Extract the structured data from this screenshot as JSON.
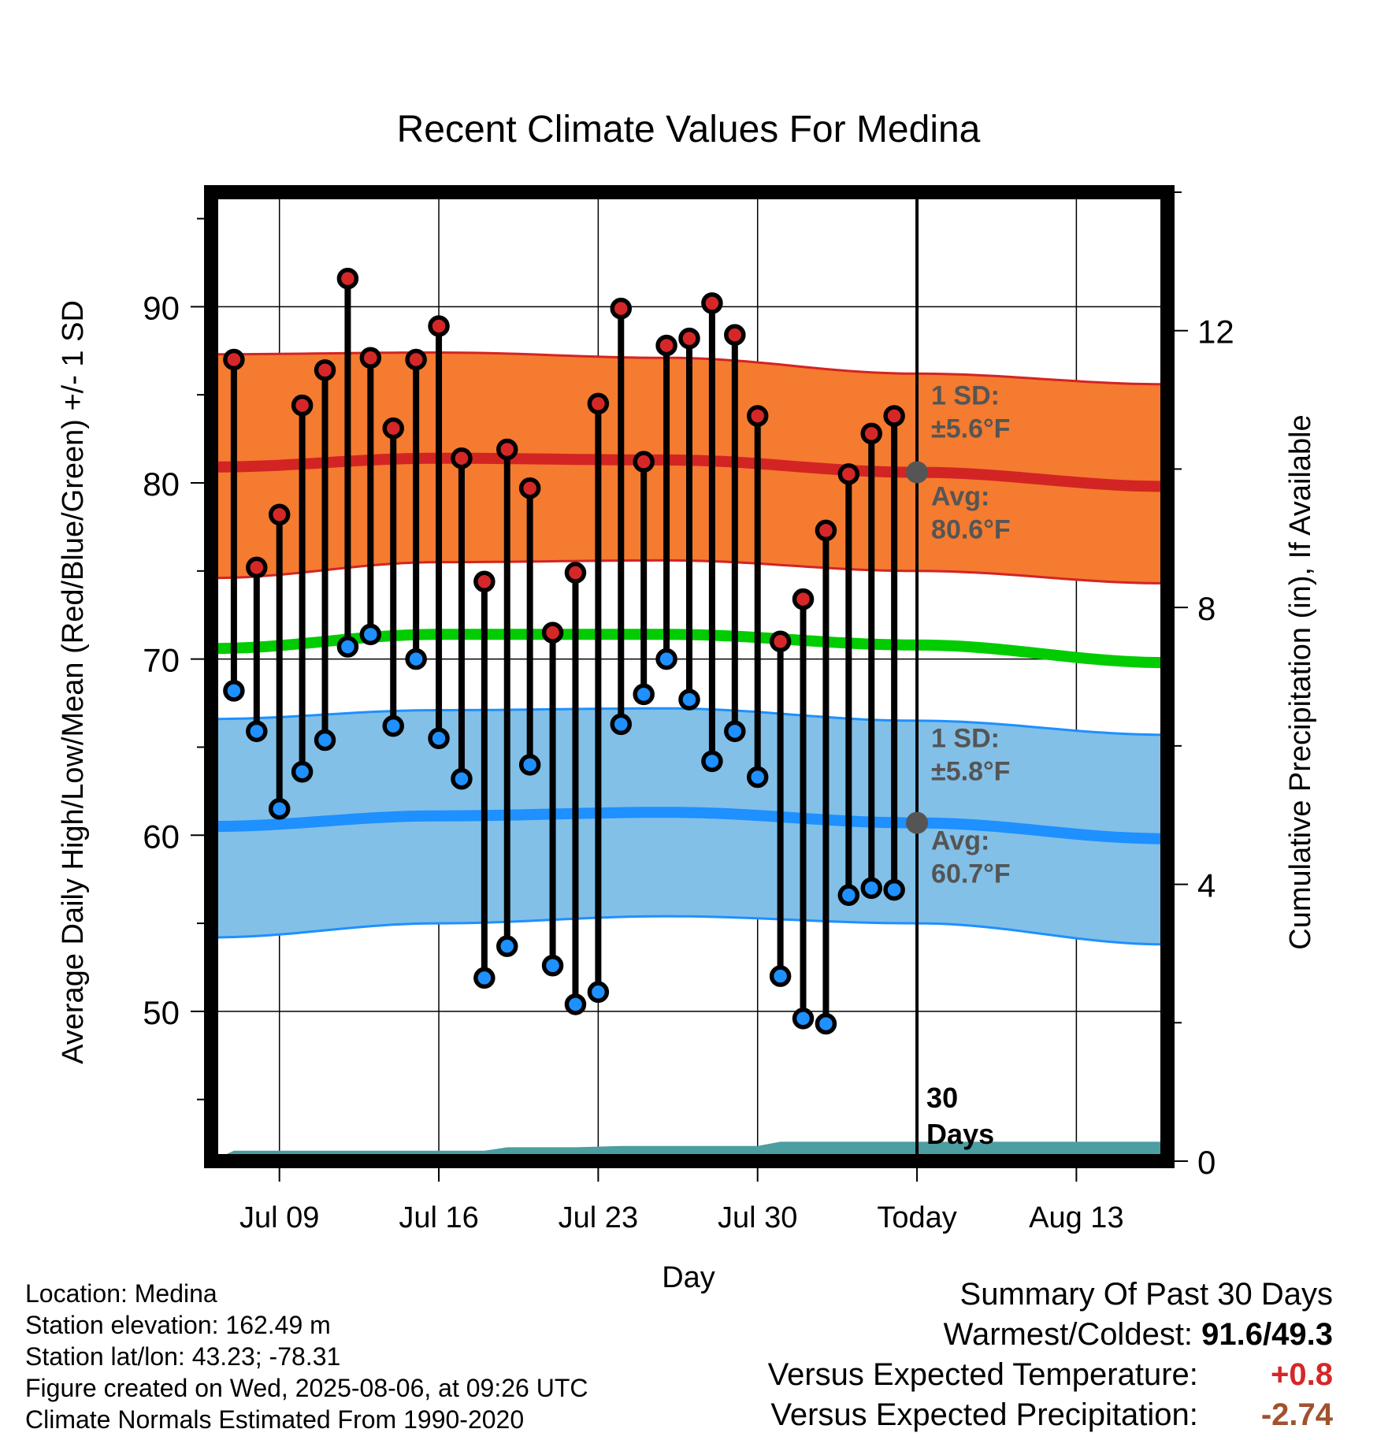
{
  "chart_data": {
    "type": "line",
    "title": "Recent Climate Values For Medina",
    "xlabel": "Day",
    "ylabel_left": "Average Daily High/Low/Mean (Red/Blue/Green) +/- 1 SD",
    "ylabel_right": "Cumulative Precipitation (in), If Available",
    "x_tick_labels": [
      "Jul 09",
      "Jul 16",
      "Jul 23",
      "Jul 30",
      "Today",
      "Aug 13"
    ],
    "y_left_ticks": [
      50,
      60,
      70,
      80,
      90
    ],
    "y_right_ticks": [
      0,
      4,
      8,
      12
    ],
    "ylim_left": [
      41.5,
      96.5
    ],
    "ylim_right": [
      0,
      14
    ],
    "x_day_range": [
      "2025-07-06",
      "2025-08-17"
    ],
    "today": "2025-08-06",
    "days": [
      "2025-07-07",
      "2025-07-08",
      "2025-07-09",
      "2025-07-10",
      "2025-07-11",
      "2025-07-12",
      "2025-07-13",
      "2025-07-14",
      "2025-07-15",
      "2025-07-16",
      "2025-07-17",
      "2025-07-18",
      "2025-07-19",
      "2025-07-20",
      "2025-07-21",
      "2025-07-22",
      "2025-07-23",
      "2025-07-24",
      "2025-07-25",
      "2025-07-26",
      "2025-07-27",
      "2025-07-28",
      "2025-07-29",
      "2025-07-30",
      "2025-07-31",
      "2025-08-01",
      "2025-08-02",
      "2025-08-03",
      "2025-08-04",
      "2025-08-05"
    ],
    "series": [
      {
        "name": "High",
        "color": "#d62728",
        "values": [
          87.0,
          75.2,
          78.2,
          84.4,
          86.4,
          91.6,
          87.1,
          83.1,
          87.0,
          88.9,
          81.4,
          74.4,
          81.9,
          79.7,
          71.5,
          74.9,
          84.5,
          89.9,
          81.2,
          87.8,
          88.2,
          90.2,
          88.4,
          83.8,
          71.0,
          73.4,
          77.3,
          80.5,
          82.8,
          83.8
        ]
      },
      {
        "name": "Low",
        "color": "#1e90ff",
        "values": [
          68.2,
          65.9,
          61.5,
          63.6,
          65.4,
          70.7,
          71.4,
          66.2,
          70.0,
          65.5,
          63.2,
          51.9,
          53.7,
          64.0,
          52.6,
          50.4,
          51.1,
          66.3,
          68.0,
          70.0,
          67.7,
          64.2,
          65.9,
          63.3,
          52.0,
          49.6,
          49.3,
          56.6,
          57.0,
          56.9
        ]
      }
    ],
    "normals": {
      "dates": [
        "2025-07-06",
        "2025-07-16",
        "2025-07-26",
        "2025-08-06",
        "2025-08-17"
      ],
      "high_mean": [
        80.9,
        81.4,
        81.3,
        80.6,
        79.8
      ],
      "high_upper": [
        87.3,
        87.4,
        87.1,
        86.2,
        85.6
      ],
      "high_lower": [
        74.6,
        75.5,
        75.6,
        75.0,
        74.3
      ],
      "mean": [
        70.6,
        71.4,
        71.4,
        70.8,
        69.8
      ],
      "low_mean": [
        60.5,
        61.1,
        61.3,
        60.7,
        59.8
      ],
      "low_upper": [
        66.6,
        67.1,
        67.2,
        66.5,
        65.7
      ],
      "low_lower": [
        54.2,
        55.0,
        55.4,
        55.0,
        53.8
      ],
      "colors": {
        "high_band": "#f47b2f",
        "high_line": "#d32424",
        "mean_line": "#00cc00",
        "low_band": "#82c0e8",
        "low_line": "#1e90ff",
        "precip": "#4c9ea0"
      }
    },
    "precip_cumulative": {
      "dates": [
        "2025-07-06",
        "2025-07-07",
        "2025-07-18",
        "2025-07-19",
        "2025-07-22",
        "2025-07-24",
        "2025-07-30",
        "2025-07-31",
        "2025-08-06",
        "2025-08-17"
      ],
      "values": [
        0.0,
        0.15,
        0.15,
        0.2,
        0.2,
        0.22,
        0.22,
        0.28,
        0.28,
        0.28
      ]
    },
    "annotations": {
      "high_sd_label": "1 SD:",
      "high_sd_value": "±5.6°F",
      "high_avg_label": "Avg:",
      "high_avg_value": "80.6°F",
      "high_avg_marker": 80.6,
      "low_sd_label": "1 SD:",
      "low_sd_value": "±5.8°F",
      "low_avg_label": "Avg:",
      "low_avg_value": "60.7°F",
      "low_avg_marker": 60.7,
      "days_label_1": "30",
      "days_label_2": "Days"
    }
  },
  "info": {
    "location": "Location: Medina",
    "elevation": "Station elevation: 162.49 m",
    "latlon": "Station lat/lon: 43.23; -78.31",
    "created": "Figure created on Wed, 2025-08-06, at 09:26 UTC",
    "normals": "Climate Normals Estimated From 1990-2020"
  },
  "summary": {
    "heading": "Summary Of Past 30 Days",
    "warm_cold_label": "Warmest/Coldest:",
    "warm_cold_value": "91.6/49.3",
    "temp_label": "Versus Expected Temperature:",
    "temp_value": "+0.8",
    "precip_label": "Versus Expected Precipitation:",
    "precip_value": "-2.74"
  }
}
